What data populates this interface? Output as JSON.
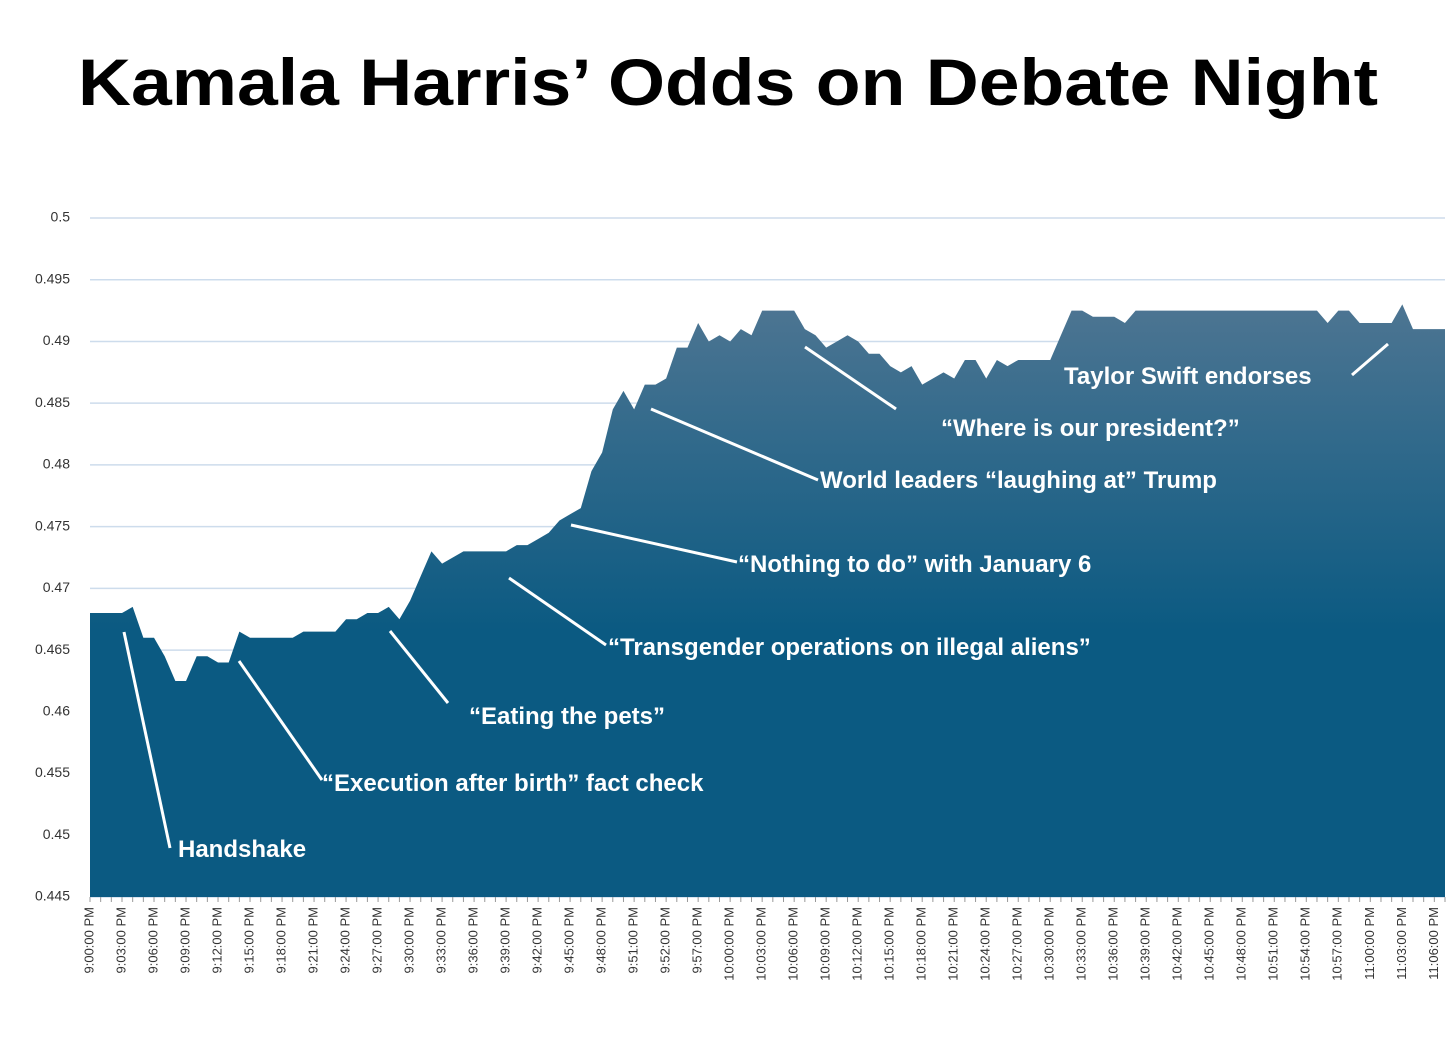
{
  "chart_data": {
    "type": "area",
    "title": "Kamala Harris’ Odds on Debate Night",
    "categories": [
      "9:00:00 PM",
      null,
      null,
      "9:03:00 PM",
      null,
      null,
      "9:06:00 PM",
      null,
      null,
      "9:09:00 PM",
      null,
      null,
      "9:12:00 PM",
      null,
      null,
      "9:15:00 PM",
      null,
      null,
      "9:18:00 PM",
      null,
      null,
      "9:21:00 PM",
      null,
      null,
      "9:24:00 PM",
      null,
      null,
      "9:27:00 PM",
      null,
      null,
      "9:30:00 PM",
      null,
      null,
      "9:33:00 PM",
      null,
      null,
      "9:36:00 PM",
      null,
      null,
      "9:39:00 PM",
      null,
      null,
      "9:42:00 PM",
      null,
      null,
      "9:45:00 PM",
      null,
      null,
      "9:48:00 PM",
      null,
      null,
      "9:51:00 PM",
      null,
      null,
      "9:52:00 PM",
      null,
      null,
      "9:57:00 PM",
      null,
      null,
      "10:00:00 PM",
      null,
      null,
      "10:03:00 PM",
      null,
      null,
      "10:06:00 PM",
      null,
      null,
      "10:09:00 PM",
      null,
      null,
      "10:12:00 PM",
      null,
      null,
      "10:15:00 PM",
      null,
      null,
      "10:18:00 PM",
      null,
      null,
      "10:21:00 PM",
      null,
      null,
      "10:24:00 PM",
      null,
      null,
      "10:27:00 PM",
      null,
      null,
      "10:30:00 PM",
      null,
      null,
      "10:33:00 PM",
      null,
      null,
      "10:36:00 PM",
      null,
      null,
      "10:39:00 PM",
      null,
      null,
      "10:42:00 PM",
      null,
      null,
      "10:45:00 PM",
      null,
      null,
      "10:48:00 PM",
      null,
      null,
      "10:51:00 PM",
      null,
      null,
      "10:54:00 PM",
      null,
      null,
      "10:57:00 PM",
      null,
      null,
      "11:00:00 PM",
      null,
      null,
      "11:03:00 PM",
      null,
      null,
      "11:06:00 PM",
      null
    ],
    "values": [
      0.468,
      0.468,
      0.468,
      0.468,
      0.4685,
      0.466,
      0.466,
      0.4645,
      0.4625,
      0.4625,
      0.4645,
      0.4645,
      0.464,
      0.464,
      0.4665,
      0.466,
      0.466,
      0.466,
      0.466,
      0.466,
      0.4665,
      0.4665,
      0.4665,
      0.4665,
      0.4675,
      0.4675,
      0.468,
      0.468,
      0.4685,
      0.4675,
      0.469,
      0.471,
      0.473,
      0.472,
      0.4725,
      0.473,
      0.473,
      0.473,
      0.473,
      0.473,
      0.4735,
      0.4735,
      0.474,
      0.4745,
      0.4755,
      0.476,
      0.4765,
      0.4795,
      0.481,
      0.4845,
      0.486,
      0.4845,
      0.4865,
      0.4865,
      0.487,
      0.4895,
      0.4895,
      0.4915,
      0.49,
      0.4905,
      0.49,
      0.491,
      0.4905,
      0.4925,
      0.4925,
      0.4925,
      0.4925,
      0.491,
      0.4905,
      0.4895,
      0.49,
      0.4905,
      0.49,
      0.489,
      0.489,
      0.488,
      0.4875,
      0.488,
      0.4865,
      0.487,
      0.4875,
      0.487,
      0.4885,
      0.4885,
      0.487,
      0.4885,
      0.488,
      0.4885,
      0.4885,
      0.4885,
      0.4885,
      0.4905,
      0.4925,
      0.4925,
      0.492,
      0.492,
      0.492,
      0.4915,
      0.4925,
      0.4925,
      0.4925,
      0.4925,
      0.4925,
      0.4925,
      0.4925,
      0.4925,
      0.4925,
      0.4925,
      0.4925,
      0.4925,
      0.4925,
      0.4925,
      0.4925,
      0.4925,
      0.4925,
      0.4925,
      0.4915,
      0.4925,
      0.4925,
      0.4915,
      0.4915,
      0.4915,
      0.4915,
      0.493,
      0.491,
      0.491,
      0.491,
      0.491
    ],
    "color_top": "#4d7592",
    "color_bottom": "#0b5a82",
    "ylim": [
      0.445,
      0.5
    ],
    "yticks": [
      0.445,
      0.45,
      0.455,
      0.46,
      0.465,
      0.47,
      0.475,
      0.48,
      0.485,
      0.49,
      0.495,
      0.5
    ],
    "grid": true,
    "annotations": [
      {
        "text": "Handshake"
      },
      {
        "text": "“Execution after birth”  fact check"
      },
      {
        "text": "“Eating the pets”"
      },
      {
        "text": "“Transgender operations on illegal aliens”"
      },
      {
        "text": "“Nothing to do” with January 6"
      },
      {
        "text": "World leaders “laughing at” Trump"
      },
      {
        "text": "“Where is our president?”"
      },
      {
        "text": "Taylor Swift endorses"
      }
    ]
  }
}
